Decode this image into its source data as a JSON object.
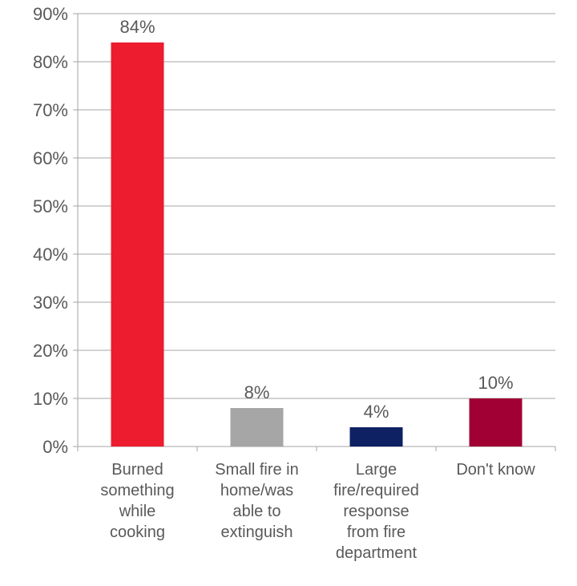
{
  "chart_data": {
    "type": "bar",
    "categories": [
      "Burned something while cooking",
      "Small fire in home/was able to extinguish",
      "Large fire/required response from fire department",
      "Don't know"
    ],
    "category_lines": [
      [
        "Burned",
        "something",
        "while",
        "cooking"
      ],
      [
        "Small fire in",
        "home/was",
        "able to",
        "extinguish"
      ],
      [
        "Large",
        "fire/required",
        "response",
        "from fire",
        "department"
      ],
      [
        "Don't know"
      ]
    ],
    "values": [
      84,
      8,
      4,
      10
    ],
    "value_labels": [
      "84%",
      "8%",
      "4%",
      "10%"
    ],
    "bar_colors": [
      "#ED1C2E",
      "#A6A6A6",
      "#0D2163",
      "#A00034"
    ],
    "ylim": [
      0,
      90
    ],
    "y_ticks": [
      0,
      10,
      20,
      30,
      40,
      50,
      60,
      70,
      80,
      90
    ],
    "y_tick_labels": [
      "0%",
      "10%",
      "20%",
      "30%",
      "40%",
      "50%",
      "60%",
      "70%",
      "80%",
      "90%"
    ],
    "grid": true,
    "title": "",
    "xlabel": "",
    "ylabel": ""
  }
}
